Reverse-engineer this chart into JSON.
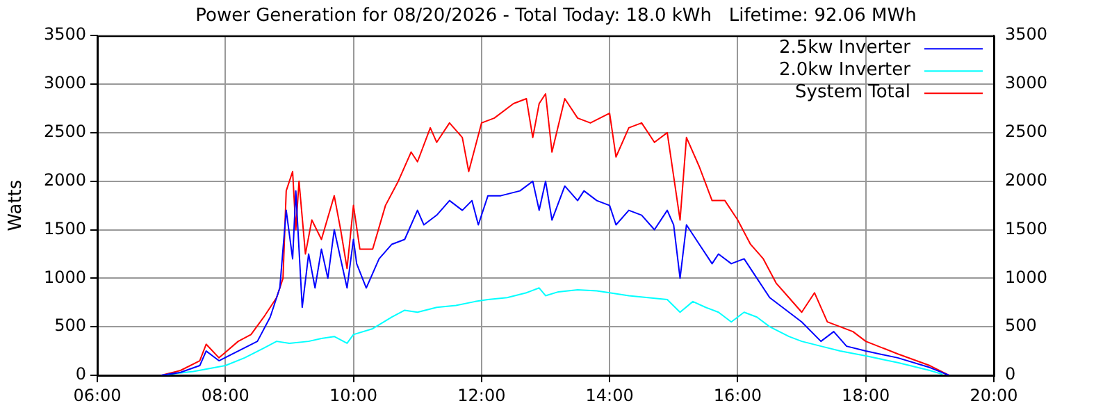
{
  "chart_data": {
    "type": "line",
    "title": "Power Generation for 08/20/2026 - Total Today: 18.0 kWh   Lifetime: 92.06 MWh",
    "ylabel": "Watts",
    "xlim": [
      6,
      20
    ],
    "xticks": [
      {
        "value": 6,
        "label": "06:00"
      },
      {
        "value": 8,
        "label": "08:00"
      },
      {
        "value": 10,
        "label": "10:00"
      },
      {
        "value": 12,
        "label": "12:00"
      },
      {
        "value": 14,
        "label": "14:00"
      },
      {
        "value": 16,
        "label": "16:00"
      },
      {
        "value": 18,
        "label": "18:00"
      },
      {
        "value": 20,
        "label": "20:00"
      }
    ],
    "ylim": [
      0,
      3500
    ],
    "yticks": [
      0,
      500,
      1000,
      1500,
      2000,
      2500,
      3000,
      3500
    ],
    "y2lim": [
      0,
      3500
    ],
    "y2ticks": [
      0,
      500,
      1000,
      1500,
      2000,
      2500,
      3000,
      3500
    ],
    "grid": true,
    "legend": "top right",
    "marker": "none",
    "line_style": "solid",
    "series": [
      {
        "name": "2.5kw Inverter",
        "color": "#0000ff",
        "x": [
          7.0,
          7.3,
          7.6,
          7.7,
          7.9,
          8.2,
          8.5,
          8.7,
          8.85,
          8.95,
          9.05,
          9.1,
          9.2,
          9.3,
          9.4,
          9.5,
          9.6,
          9.7,
          9.8,
          9.9,
          10.0,
          10.05,
          10.2,
          10.4,
          10.6,
          10.8,
          11.0,
          11.1,
          11.3,
          11.5,
          11.7,
          11.85,
          11.95,
          12.1,
          12.3,
          12.6,
          12.8,
          12.9,
          13.0,
          13.1,
          13.3,
          13.5,
          13.6,
          13.8,
          14.0,
          14.1,
          14.3,
          14.5,
          14.7,
          14.9,
          15.0,
          15.1,
          15.2,
          15.4,
          15.6,
          15.7,
          15.9,
          16.1,
          16.3,
          16.5,
          16.8,
          17.0,
          17.3,
          17.5,
          17.7,
          18.0,
          18.5,
          19.0,
          19.3
        ],
        "values": [
          0,
          30,
          100,
          250,
          150,
          250,
          350,
          600,
          900,
          1700,
          1200,
          1900,
          700,
          1250,
          900,
          1300,
          1000,
          1500,
          1200,
          900,
          1400,
          1150,
          900,
          1200,
          1350,
          1400,
          1700,
          1550,
          1650,
          1800,
          1700,
          1800,
          1550,
          1850,
          1850,
          1900,
          2000,
          1700,
          2000,
          1600,
          1950,
          1800,
          1900,
          1800,
          1750,
          1550,
          1700,
          1650,
          1500,
          1700,
          1550,
          1000,
          1550,
          1350,
          1150,
          1250,
          1150,
          1200,
          1000,
          800,
          650,
          550,
          350,
          450,
          300,
          250,
          180,
          80,
          0
        ]
      },
      {
        "name": "2.0kw Inverter",
        "color": "#00ffff",
        "x": [
          7.0,
          7.5,
          8.0,
          8.3,
          8.6,
          8.8,
          9.0,
          9.3,
          9.5,
          9.7,
          9.9,
          10.0,
          10.3,
          10.6,
          10.8,
          11.0,
          11.3,
          11.6,
          11.9,
          12.1,
          12.4,
          12.7,
          12.9,
          13.0,
          13.2,
          13.5,
          13.8,
          14.0,
          14.3,
          14.6,
          14.9,
          15.1,
          15.3,
          15.5,
          15.7,
          15.9,
          16.1,
          16.3,
          16.5,
          16.8,
          17.0,
          17.3,
          17.6,
          18.0,
          18.5,
          19.0,
          19.2
        ],
        "values": [
          0,
          40,
          100,
          180,
          280,
          350,
          330,
          350,
          380,
          400,
          330,
          420,
          480,
          600,
          670,
          650,
          700,
          720,
          760,
          780,
          800,
          850,
          900,
          820,
          860,
          880,
          870,
          850,
          820,
          800,
          780,
          650,
          760,
          700,
          650,
          550,
          650,
          600,
          500,
          400,
          350,
          300,
          250,
          200,
          130,
          50,
          10
        ]
      },
      {
        "name": "System Total",
        "color": "#ff0000",
        "x": [
          7.0,
          7.3,
          7.6,
          7.7,
          7.9,
          8.2,
          8.4,
          8.6,
          8.8,
          8.9,
          8.95,
          9.05,
          9.1,
          9.15,
          9.25,
          9.35,
          9.5,
          9.7,
          9.8,
          9.9,
          10.0,
          10.1,
          10.3,
          10.5,
          10.7,
          10.9,
          11.0,
          11.2,
          11.3,
          11.5,
          11.7,
          11.8,
          12.0,
          12.2,
          12.5,
          12.7,
          12.8,
          12.9,
          13.0,
          13.1,
          13.3,
          13.5,
          13.7,
          14.0,
          14.1,
          14.3,
          14.5,
          14.7,
          14.9,
          15.1,
          15.2,
          15.4,
          15.6,
          15.8,
          16.0,
          16.2,
          16.4,
          16.6,
          16.8,
          17.0,
          17.2,
          17.4,
          17.6,
          17.8,
          18.0,
          18.5,
          19.0,
          19.3
        ],
        "values": [
          0,
          50,
          150,
          320,
          180,
          350,
          420,
          600,
          800,
          1000,
          1900,
          2100,
          1500,
          2000,
          1250,
          1600,
          1400,
          1850,
          1500,
          1100,
          1750,
          1300,
          1300,
          1750,
          2000,
          2300,
          2200,
          2550,
          2400,
          2600,
          2450,
          2100,
          2600,
          2650,
          2800,
          2850,
          2450,
          2800,
          2900,
          2300,
          2850,
          2650,
          2600,
          2700,
          2250,
          2550,
          2600,
          2400,
          2500,
          1600,
          2450,
          2150,
          1800,
          1800,
          1600,
          1350,
          1200,
          950,
          800,
          650,
          850,
          550,
          500,
          450,
          350,
          220,
          100,
          0
        ]
      }
    ]
  }
}
